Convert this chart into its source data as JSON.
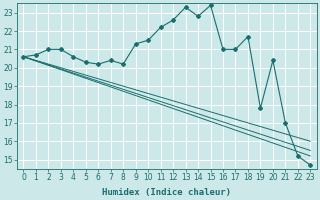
{
  "xlabel": "Humidex (Indice chaleur)",
  "ylabel": "",
  "background_color": "#cce8e8",
  "grid_color": "#b0d8d8",
  "line_color": "#1a6e6e",
  "xlim": [
    -0.5,
    23.5
  ],
  "ylim": [
    14.5,
    23.5
  ],
  "yticks": [
    15,
    16,
    17,
    18,
    19,
    20,
    21,
    22,
    23
  ],
  "xticks": [
    0,
    1,
    2,
    3,
    4,
    5,
    6,
    7,
    8,
    9,
    10,
    11,
    12,
    13,
    14,
    15,
    16,
    17,
    18,
    19,
    20,
    21,
    22,
    23
  ],
  "main_y": [
    20.6,
    20.7,
    21.0,
    21.0,
    20.6,
    20.3,
    20.2,
    20.4,
    20.2,
    21.3,
    21.5,
    22.2,
    22.6,
    23.3,
    22.8,
    23.4,
    21.0,
    21.0,
    21.7,
    17.8,
    20.4,
    17.0,
    15.2,
    14.7
  ],
  "reg_line1": [
    [
      0,
      20.6
    ],
    [
      23,
      16.0
    ]
  ],
  "reg_line2": [
    [
      0,
      20.6
    ],
    [
      23,
      15.5
    ]
  ],
  "reg_line3": [
    [
      0,
      20.6
    ],
    [
      23,
      15.2
    ]
  ]
}
